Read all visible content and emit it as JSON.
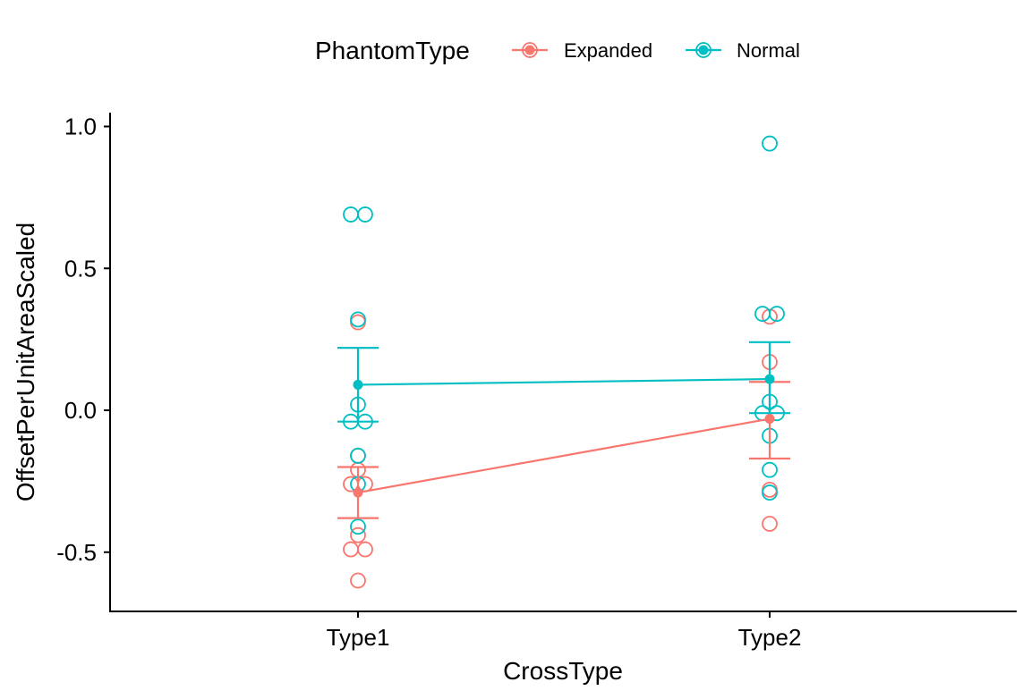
{
  "chart_data": {
    "type": "scatter",
    "xlabel": "CrossType",
    "ylabel": "OffsetPerUnitAreaScaled",
    "categories": [
      "Type1",
      "Type2"
    ],
    "ylim": [
      -0.7,
      1.05
    ],
    "yticks": [
      -0.5,
      0.0,
      0.5,
      1.0
    ],
    "ytick_labels": [
      "-0.5",
      "0.0",
      "0.5",
      "1.0"
    ],
    "grid": false,
    "legend": {
      "title": "PhantomType",
      "placement": "top",
      "entries": [
        "Expanded",
        "Normal"
      ]
    },
    "series": [
      {
        "name": "Expanded",
        "color": "#F8766D",
        "mean": [
          -0.29,
          -0.03
        ],
        "error_low": [
          -0.38,
          -0.17
        ],
        "error_high": [
          -0.2,
          0.1
        ],
        "points": [
          {
            "category": "Type1",
            "y": 0.31
          },
          {
            "category": "Type1",
            "y": -0.16
          },
          {
            "category": "Type1",
            "y": -0.21
          },
          {
            "category": "Type1",
            "y": -0.26
          },
          {
            "category": "Type1",
            "y": -0.26
          },
          {
            "category": "Type1",
            "y": -0.44
          },
          {
            "category": "Type1",
            "y": -0.49
          },
          {
            "category": "Type1",
            "y": -0.49
          },
          {
            "category": "Type1",
            "y": -0.6
          },
          {
            "category": "Type2",
            "y": 0.33
          },
          {
            "category": "Type2",
            "y": 0.17
          },
          {
            "category": "Type2",
            "y": -0.28
          },
          {
            "category": "Type2",
            "y": -0.4
          }
        ]
      },
      {
        "name": "Normal",
        "color": "#00BFC4",
        "mean": [
          0.09,
          0.11
        ],
        "error_low": [
          -0.04,
          -0.01
        ],
        "error_high": [
          0.22,
          0.24
        ],
        "points": [
          {
            "category": "Type1",
            "y": 0.69
          },
          {
            "category": "Type1",
            "y": 0.69
          },
          {
            "category": "Type1",
            "y": 0.32
          },
          {
            "category": "Type1",
            "y": 0.02
          },
          {
            "category": "Type1",
            "y": -0.04
          },
          {
            "category": "Type1",
            "y": -0.04
          },
          {
            "category": "Type1",
            "y": -0.16
          },
          {
            "category": "Type1",
            "y": -0.26
          },
          {
            "category": "Type1",
            "y": -0.41
          },
          {
            "category": "Type2",
            "y": 0.94
          },
          {
            "category": "Type2",
            "y": 0.34
          },
          {
            "category": "Type2",
            "y": 0.34
          },
          {
            "category": "Type2",
            "y": 0.03
          },
          {
            "category": "Type2",
            "y": -0.01
          },
          {
            "category": "Type2",
            "y": -0.01
          },
          {
            "category": "Type2",
            "y": -0.09
          },
          {
            "category": "Type2",
            "y": -0.21
          },
          {
            "category": "Type2",
            "y": -0.29
          }
        ]
      }
    ]
  }
}
